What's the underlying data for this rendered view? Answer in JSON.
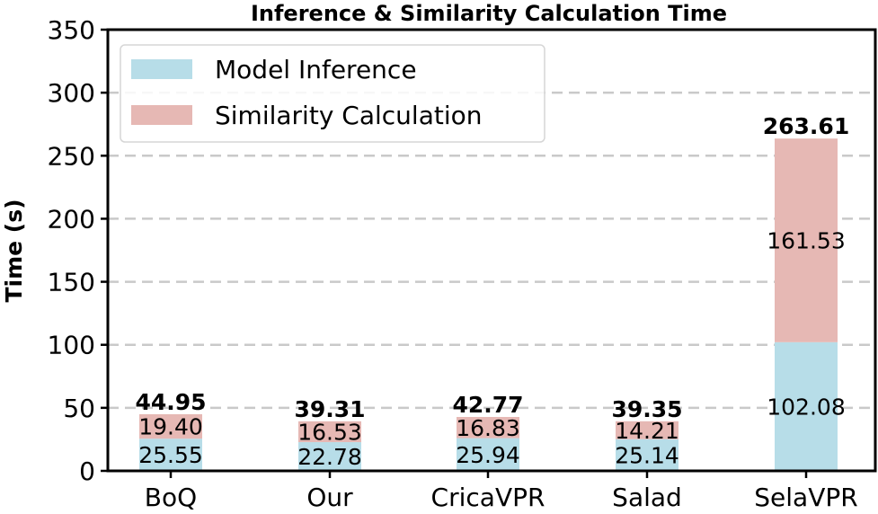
{
  "chart_data": {
    "type": "bar",
    "stacked": true,
    "title": "Inference & Similarity Calculation Time",
    "xlabel": "",
    "ylabel": "Time (s)",
    "ylim": [
      0,
      350
    ],
    "yticks": [
      "0",
      "50",
      "100",
      "150",
      "200",
      "250",
      "300",
      "350"
    ],
    "grid": true,
    "legend_position": "top-left",
    "categories": [
      "BoQ",
      "Our",
      "CricaVPR",
      "Salad",
      "SelaVPR"
    ],
    "series": [
      {
        "name": "Model Inference",
        "color": "#b7dde8",
        "values": [
          25.55,
          22.78,
          25.94,
          25.14,
          102.08
        ],
        "labels": [
          "25.55",
          "22.78",
          "25.94",
          "25.14",
          "102.08"
        ]
      },
      {
        "name": "Similarity Calculation",
        "color": "#e6b8b4",
        "values": [
          19.4,
          16.53,
          16.83,
          14.21,
          161.53
        ],
        "labels": [
          "19.40",
          "16.53",
          "16.83",
          "14.21",
          "161.53"
        ]
      }
    ],
    "totals": [
      "44.95",
      "39.31",
      "42.77",
      "39.35",
      "263.61"
    ]
  }
}
